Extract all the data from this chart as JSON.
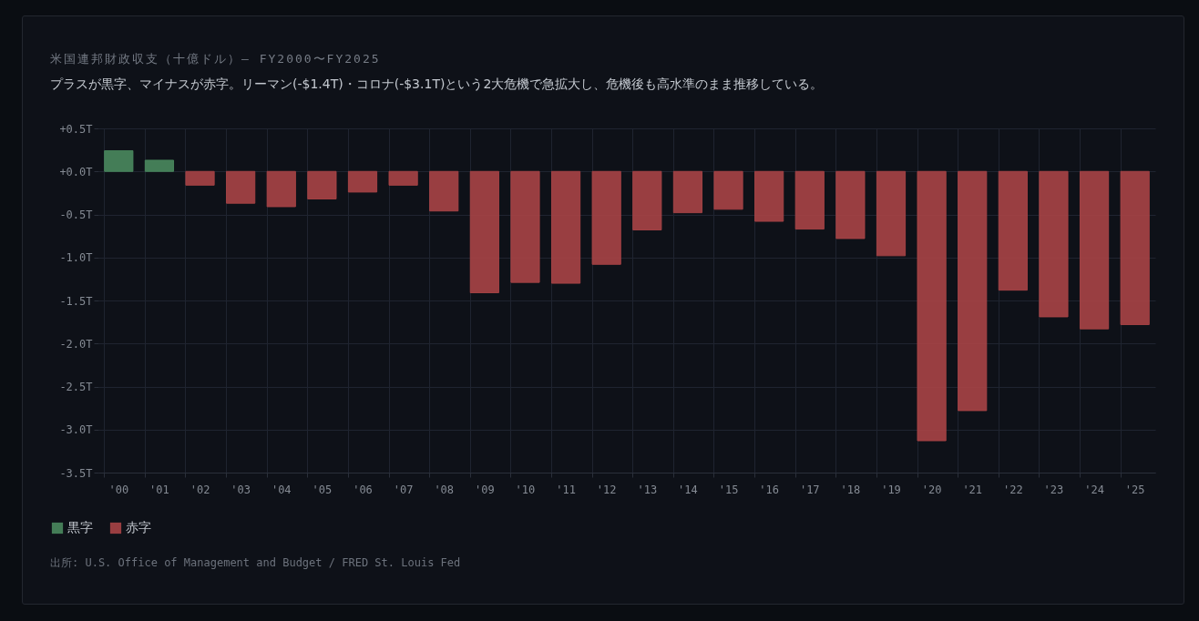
{
  "chart_data": {
    "type": "bar",
    "title": "米国連邦財政収支（十億ドル）— FY2000〜FY2025",
    "subtitle": "プラスが黒字、マイナスが赤字。リーマン(-$1.4T)・コロナ(-$3.1T)という2大危機で急拡大し、危機後も高水準のまま推移している。",
    "categories": [
      "'00",
      "'01",
      "'02",
      "'03",
      "'04",
      "'05",
      "'06",
      "'07",
      "'08",
      "'09",
      "'10",
      "'11",
      "'12",
      "'13",
      "'14",
      "'15",
      "'16",
      "'17",
      "'18",
      "'19",
      "'20",
      "'21",
      "'22",
      "'23",
      "'24",
      "'25"
    ],
    "series": [
      {
        "name": "黒字",
        "color": "#4a8a5e",
        "values": [
          0.24,
          0.13,
          null,
          null,
          null,
          null,
          null,
          null,
          null,
          null,
          null,
          null,
          null,
          null,
          null,
          null,
          null,
          null,
          null,
          null,
          null,
          null,
          null,
          null,
          null,
          null
        ]
      },
      {
        "name": "赤字",
        "color": "#a84446",
        "values": [
          null,
          null,
          -0.16,
          -0.37,
          -0.41,
          -0.32,
          -0.24,
          -0.16,
          -0.46,
          -1.41,
          -1.29,
          -1.3,
          -1.08,
          -0.68,
          -0.48,
          -0.44,
          -0.58,
          -0.67,
          -0.78,
          -0.98,
          -3.13,
          -2.78,
          -1.38,
          -1.69,
          -1.83,
          -1.78
        ]
      }
    ],
    "ylim": [
      -3.5,
      0.5
    ],
    "yticks": [
      {
        "value": 0.5,
        "label": "+0.5T"
      },
      {
        "value": 0,
        "label": "+0.0T"
      },
      {
        "value": -0.5,
        "label": "-0.5T"
      },
      {
        "value": -1,
        "label": "-1.0T"
      },
      {
        "value": -1.5,
        "label": "-1.5T"
      },
      {
        "value": -2,
        "label": "-2.0T"
      },
      {
        "value": -2.5,
        "label": "-2.5T"
      },
      {
        "value": -3,
        "label": "-3.0T"
      },
      {
        "value": -3.5,
        "label": "-3.5T"
      }
    ],
    "grid": true,
    "legend": "bottom left",
    "annotations": [
      "出所: U.S. Office of Management and Budget / FRED St. Louis Fed"
    ]
  }
}
